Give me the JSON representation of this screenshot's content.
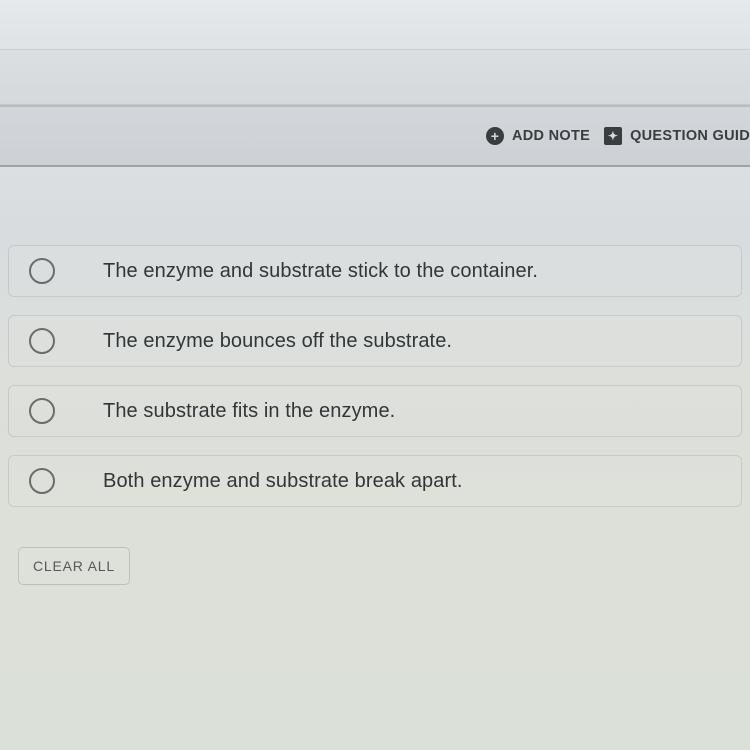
{
  "toolbar": {
    "add_note_label": "ADD NOTE",
    "question_guide_label": "QUESTION GUID",
    "plus_glyph": "+",
    "bookmark_glyph": "✦"
  },
  "options": [
    {
      "text": "The enzyme and substrate stick to the container."
    },
    {
      "text": "The enzyme bounces off the substrate."
    },
    {
      "text": "The substrate fits in the enzyme."
    },
    {
      "text": "Both enzyme and substrate break apart."
    }
  ],
  "buttons": {
    "clear_all": "CLEAR ALL"
  },
  "colors": {
    "toolbar_text": "#3a3d40",
    "option_text": "#323638",
    "radio_border": "#6a6e6b",
    "option_border": "rgba(170,176,172,0.45)"
  }
}
